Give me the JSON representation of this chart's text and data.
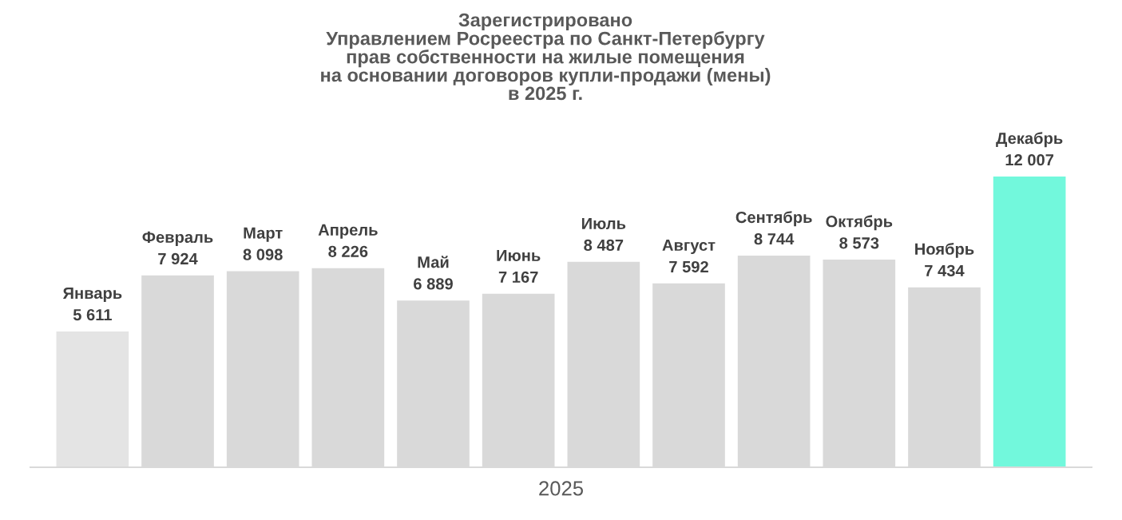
{
  "chart_data": {
    "type": "bar",
    "title": "Зарегистрировано\nУправлением Росреестра по Санкт-Петербургу\nправ собственности на жилые помещения\nна основании договоров купли-продажи (мены)\nв 2025 г.",
    "xlabel": "2025",
    "categories": [
      "Январь",
      "Февраль",
      "Март",
      "Апрель",
      "Май",
      "Июнь",
      "Июль",
      "Август",
      "Сентябрь",
      "Октябрь",
      "Ноябрь",
      "Декабрь"
    ],
    "values": [
      5611,
      7924,
      8098,
      8226,
      6889,
      7167,
      8487,
      7592,
      8744,
      8573,
      7434,
      12007
    ],
    "value_labels": [
      "5 611",
      "7 924",
      "8 098",
      "8 226",
      "6 889",
      "7 167",
      "8 487",
      "7 592",
      "8 744",
      "8 573",
      "7 434",
      "12 007"
    ],
    "colors": [
      "#e4e4e4",
      "#d9d9d9",
      "#d9d9d9",
      "#d9d9d9",
      "#d9d9d9",
      "#d9d9d9",
      "#d9d9d9",
      "#d9d9d9",
      "#d9d9d9",
      "#d9d9d9",
      "#d9d9d9",
      "#72f8dc"
    ]
  }
}
